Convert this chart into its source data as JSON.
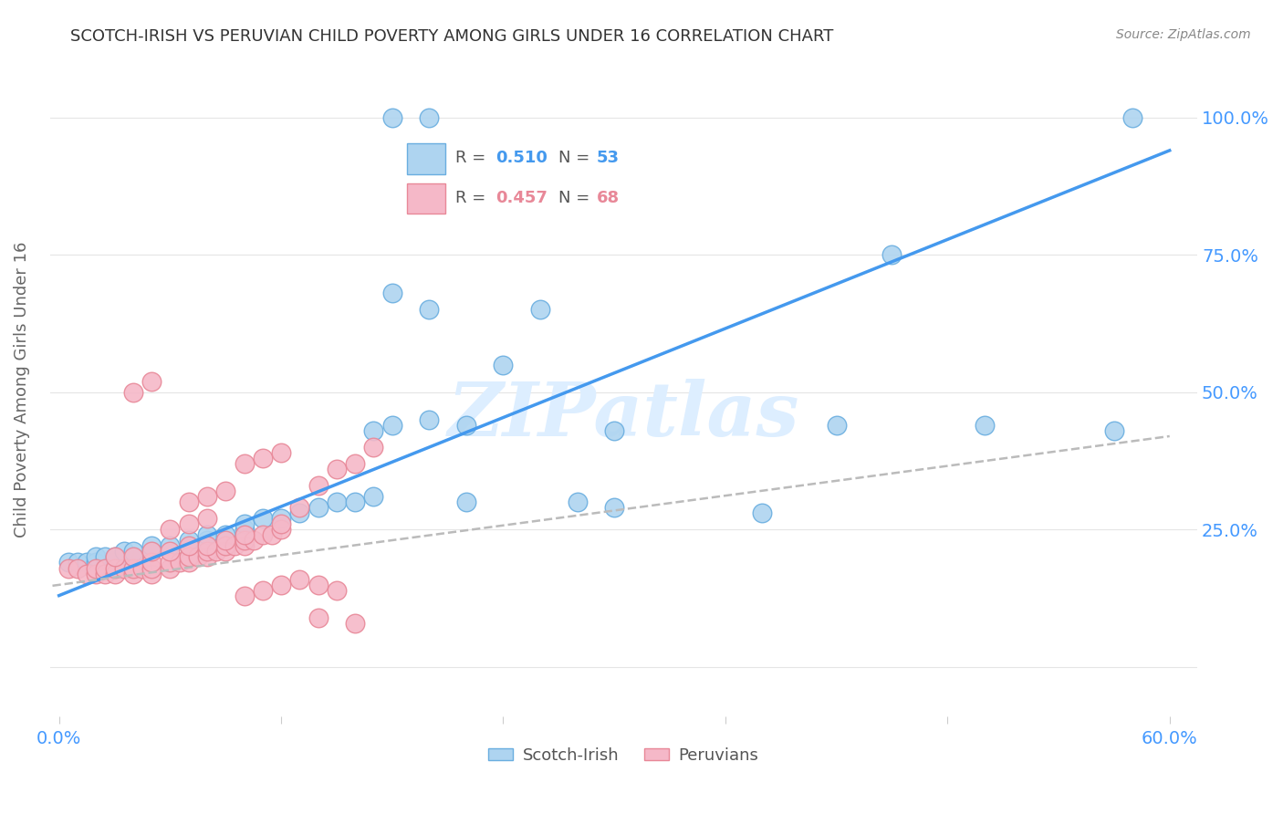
{
  "title": "SCOTCH-IRISH VS PERUVIAN CHILD POVERTY AMONG GIRLS UNDER 16 CORRELATION CHART",
  "source": "Source: ZipAtlas.com",
  "ylabel": "Child Poverty Among Girls Under 16",
  "blue_color": "#AED4F0",
  "blue_edge_color": "#6AAEE0",
  "pink_color": "#F5B8C8",
  "pink_edge_color": "#E88898",
  "blue_line_color": "#4499EE",
  "gray_dashed_color": "#BBBBBB",
  "pink_reg_color": "#EE9999",
  "axis_label_color": "#4499FF",
  "title_color": "#333333",
  "source_color": "#888888",
  "watermark_color": "#DDEEFF",
  "grid_color": "#E5E5E5",
  "xlim": [
    -0.005,
    0.615
  ],
  "ylim": [
    -0.09,
    1.1
  ],
  "scotch_irish_x": [
    0.005,
    0.01,
    0.015,
    0.02,
    0.02,
    0.025,
    0.03,
    0.03,
    0.035,
    0.04,
    0.04,
    0.05,
    0.05,
    0.06,
    0.07,
    0.07,
    0.08,
    0.08,
    0.09,
    0.1,
    0.1,
    0.11,
    0.12,
    0.13,
    0.14,
    0.15,
    0.16,
    0.17,
    0.18,
    0.2,
    0.22,
    0.24,
    0.26,
    0.3,
    0.17,
    0.18,
    0.2,
    0.22,
    0.28,
    0.3,
    0.38,
    0.42,
    0.5,
    0.57,
    0.18,
    0.2,
    0.45,
    0.58
  ],
  "scotch_irish_y": [
    0.19,
    0.19,
    0.19,
    0.19,
    0.2,
    0.2,
    0.19,
    0.2,
    0.21,
    0.2,
    0.21,
    0.21,
    0.22,
    0.22,
    0.22,
    0.23,
    0.23,
    0.24,
    0.24,
    0.25,
    0.26,
    0.27,
    0.27,
    0.28,
    0.29,
    0.3,
    0.3,
    0.31,
    0.68,
    0.65,
    0.3,
    0.55,
    0.65,
    0.43,
    0.43,
    0.44,
    0.45,
    0.44,
    0.3,
    0.29,
    0.28,
    0.44,
    0.44,
    0.43,
    1.0,
    1.0,
    0.75,
    1.0
  ],
  "peruvian_x": [
    0.005,
    0.01,
    0.015,
    0.02,
    0.02,
    0.025,
    0.025,
    0.03,
    0.03,
    0.035,
    0.04,
    0.04,
    0.045,
    0.05,
    0.05,
    0.05,
    0.06,
    0.06,
    0.065,
    0.07,
    0.07,
    0.075,
    0.08,
    0.08,
    0.085,
    0.09,
    0.09,
    0.095,
    0.1,
    0.1,
    0.105,
    0.11,
    0.115,
    0.12,
    0.12,
    0.13,
    0.14,
    0.15,
    0.16,
    0.17,
    0.03,
    0.04,
    0.05,
    0.06,
    0.07,
    0.08,
    0.09,
    0.1,
    0.04,
    0.05,
    0.06,
    0.07,
    0.08,
    0.07,
    0.08,
    0.09,
    0.1,
    0.11,
    0.12,
    0.13,
    0.14,
    0.15,
    0.1,
    0.11,
    0.12,
    0.14,
    0.16
  ],
  "peruvian_y": [
    0.18,
    0.18,
    0.17,
    0.17,
    0.18,
    0.17,
    0.18,
    0.17,
    0.18,
    0.18,
    0.17,
    0.18,
    0.18,
    0.17,
    0.18,
    0.19,
    0.18,
    0.19,
    0.19,
    0.19,
    0.2,
    0.2,
    0.2,
    0.21,
    0.21,
    0.21,
    0.22,
    0.22,
    0.22,
    0.23,
    0.23,
    0.24,
    0.24,
    0.25,
    0.26,
    0.29,
    0.33,
    0.36,
    0.37,
    0.4,
    0.2,
    0.2,
    0.21,
    0.21,
    0.22,
    0.22,
    0.23,
    0.24,
    0.5,
    0.52,
    0.25,
    0.26,
    0.27,
    0.3,
    0.31,
    0.32,
    0.37,
    0.38,
    0.39,
    0.16,
    0.15,
    0.14,
    0.13,
    0.14,
    0.15,
    0.09,
    0.08
  ],
  "blue_line_x": [
    0.0,
    0.6
  ],
  "blue_line_y": [
    0.13,
    0.94
  ],
  "pink_line_x": [
    -0.01,
    0.6
  ],
  "pink_line_y": [
    0.145,
    0.42
  ]
}
